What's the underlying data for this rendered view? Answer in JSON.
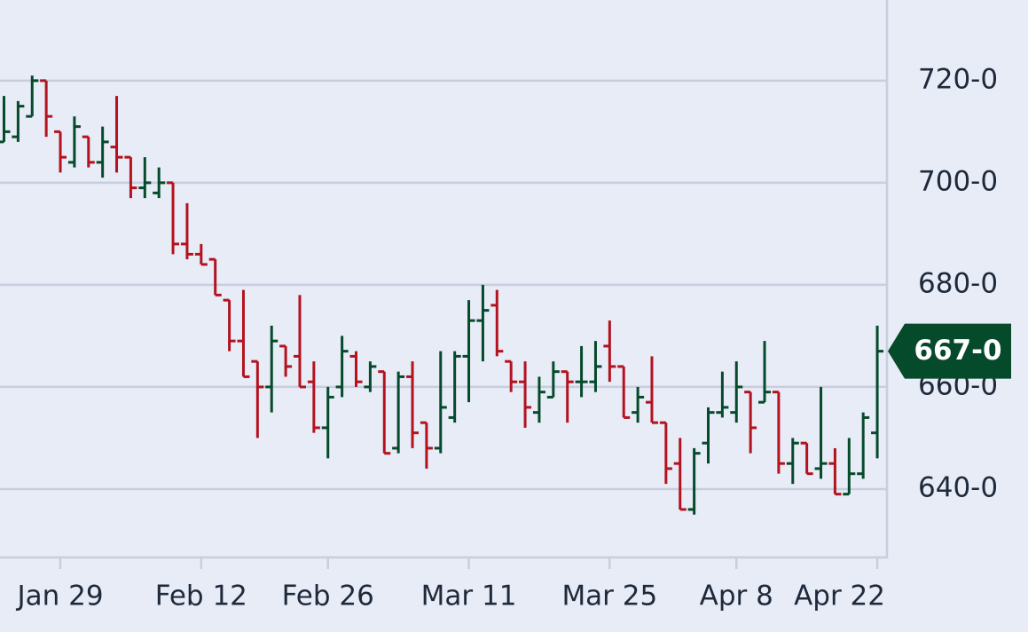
{
  "chart_data": {
    "type": "ohlc",
    "categories": [
      null,
      null,
      null,
      null,
      "Jan 29",
      null,
      null,
      null,
      null,
      null,
      null,
      null,
      null,
      null,
      "Feb 12",
      null,
      null,
      null,
      null,
      null,
      null,
      null,
      null,
      "Feb 26",
      null,
      null,
      null,
      null,
      null,
      null,
      null,
      null,
      null,
      "Mar 11",
      null,
      null,
      null,
      null,
      null,
      null,
      null,
      null,
      null,
      "Mar 25",
      null,
      null,
      null,
      null,
      null,
      null,
      null,
      null,
      "Apr 8",
      null,
      null,
      null,
      null,
      null,
      null,
      null,
      null,
      null,
      "Apr 22"
    ],
    "open": [
      708,
      709,
      713,
      720,
      710,
      704,
      709,
      704,
      707,
      705,
      699,
      698,
      700,
      688,
      686,
      685,
      677,
      669,
      665,
      660,
      668,
      666,
      661,
      652,
      660,
      666,
      660,
      663,
      648,
      662,
      653,
      648,
      654,
      666,
      673,
      676,
      665,
      661,
      655,
      658,
      663,
      661,
      661,
      668,
      664,
      655,
      657,
      653,
      645,
      636,
      649,
      655,
      655,
      659,
      657,
      659,
      645,
      649,
      644,
      645,
      639,
      643,
      651
    ],
    "high": [
      717,
      716,
      721,
      720,
      710,
      713,
      709,
      711,
      717,
      705,
      705,
      703,
      700,
      696,
      688,
      685,
      677,
      679,
      665,
      672,
      668,
      678,
      665,
      660,
      670,
      667,
      665,
      663,
      663,
      665,
      653,
      667,
      667,
      677,
      680,
      679,
      665,
      665,
      662,
      665,
      663,
      668,
      669,
      673,
      664,
      660,
      666,
      653,
      650,
      648,
      656,
      663,
      665,
      659,
      669,
      659,
      650,
      649,
      660,
      648,
      650,
      655,
      672
    ],
    "low": [
      708,
      708,
      713,
      709,
      702,
      703,
      703,
      701,
      702,
      697,
      697,
      697,
      686,
      685,
      684,
      678,
      667,
      662,
      650,
      655,
      662,
      660,
      651,
      646,
      658,
      660,
      659,
      647,
      647,
      648,
      644,
      647,
      653,
      657,
      665,
      666,
      659,
      652,
      653,
      658,
      653,
      658,
      659,
      661,
      654,
      653,
      653,
      641,
      636,
      635,
      645,
      654,
      653,
      647,
      657,
      643,
      641,
      643,
      642,
      639,
      639,
      642,
      646
    ],
    "close": [
      710,
      715,
      720,
      713,
      705,
      711,
      704,
      708,
      705,
      699,
      700,
      700,
      688,
      686,
      684,
      678,
      669,
      662,
      660,
      669,
      664,
      660,
      652,
      658,
      667,
      661,
      664,
      647,
      662,
      651,
      648,
      656,
      666,
      673,
      675,
      667,
      661,
      656,
      659,
      663,
      661,
      661,
      664,
      664,
      654,
      658,
      653,
      644,
      636,
      647,
      655,
      656,
      660,
      652,
      659,
      645,
      649,
      643,
      645,
      639,
      643,
      654,
      667
    ],
    "up_color": "#064a2c",
    "down_color": "#b3121f",
    "ylim": [
      626.6,
      735.8
    ],
    "yticks": [
      {
        "value": 640,
        "label": "640-0"
      },
      {
        "value": 660,
        "label": "660-0"
      },
      {
        "value": 680,
        "label": "680-0"
      },
      {
        "value": 700,
        "label": "700-0"
      },
      {
        "value": 720,
        "label": "720-0"
      }
    ],
    "grid": true,
    "last_price": {
      "value": 667,
      "label": "667-0"
    }
  }
}
